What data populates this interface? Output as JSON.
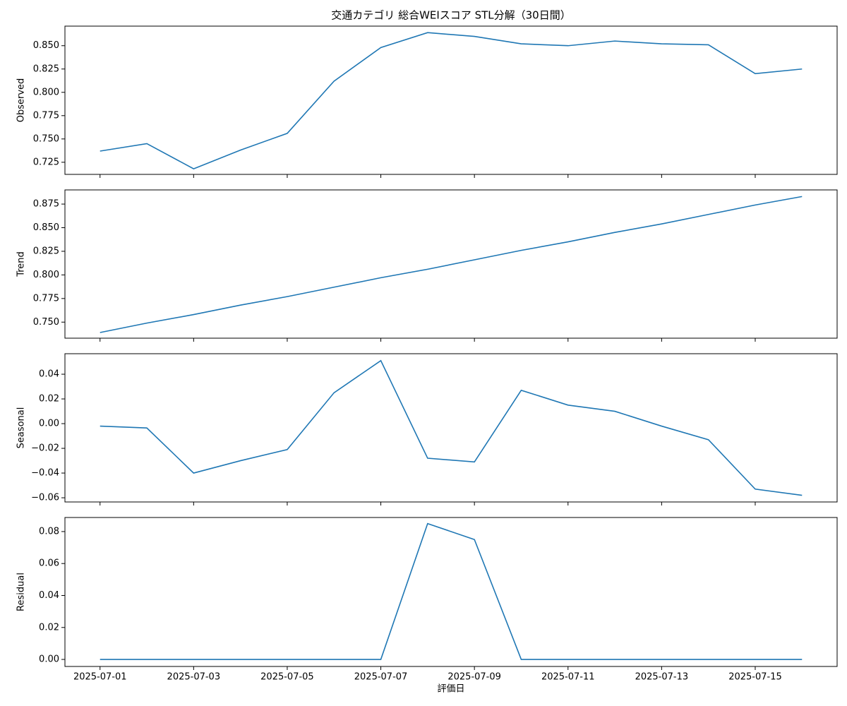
{
  "chart_data": [
    {
      "type": "line",
      "title": "交通カテゴリ 総合WEIスコア STL分解（30日間）",
      "ylabel": "Observed",
      "x": [
        "2025-07-01",
        "2025-07-02",
        "2025-07-03",
        "2025-07-04",
        "2025-07-05",
        "2025-07-06",
        "2025-07-07",
        "2025-07-08",
        "2025-07-09",
        "2025-07-10",
        "2025-07-11",
        "2025-07-12",
        "2025-07-13",
        "2025-07-14",
        "2025-07-15",
        "2025-07-16"
      ],
      "series": [
        {
          "color": "#1f77b4",
          "values": [
            0.737,
            0.745,
            0.718,
            0.738,
            0.756,
            0.812,
            0.848,
            0.864,
            0.86,
            0.852,
            0.85,
            0.855,
            0.852,
            0.851,
            0.82,
            0.825
          ]
        }
      ],
      "ylim": [
        0.712,
        0.871
      ],
      "yticks": [
        0.725,
        {
          "value": 0.75,
          "label": "0.750"
        },
        0.775,
        {
          "value": 0.8,
          "label": "0.800"
        },
        0.825,
        {
          "value": 0.85,
          "label": "0.850"
        }
      ]
    },
    {
      "type": "line",
      "ylabel": "Trend",
      "x": [
        "2025-07-01",
        "2025-07-02",
        "2025-07-03",
        "2025-07-04",
        "2025-07-05",
        "2025-07-06",
        "2025-07-07",
        "2025-07-08",
        "2025-07-09",
        "2025-07-10",
        "2025-07-11",
        "2025-07-12",
        "2025-07-13",
        "2025-07-14",
        "2025-07-15",
        "2025-07-16"
      ],
      "series": [
        {
          "color": "#1f77b4",
          "values": [
            0.739,
            0.749,
            0.758,
            0.768,
            0.777,
            0.787,
            0.797,
            0.806,
            0.816,
            0.826,
            0.835,
            0.845,
            0.854,
            0.864,
            0.874,
            0.883
          ]
        }
      ],
      "ylim": [
        0.733,
        0.89
      ],
      "yticks": [
        {
          "value": 0.75,
          "label": "0.750"
        },
        0.775,
        {
          "value": 0.8,
          "label": "0.800"
        },
        0.825,
        {
          "value": 0.85,
          "label": "0.850"
        },
        0.875
      ]
    },
    {
      "type": "line",
      "ylabel": "Seasonal",
      "x": [
        "2025-07-01",
        "2025-07-02",
        "2025-07-03",
        "2025-07-04",
        "2025-07-05",
        "2025-07-06",
        "2025-07-07",
        "2025-07-08",
        "2025-07-09",
        "2025-07-10",
        "2025-07-11",
        "2025-07-12",
        "2025-07-13",
        "2025-07-14",
        "2025-07-15",
        "2025-07-16"
      ],
      "series": [
        {
          "color": "#1f77b4",
          "values": [
            -0.002,
            -0.0035,
            -0.04,
            -0.03,
            -0.021,
            0.025,
            0.051,
            -0.028,
            -0.031,
            0.027,
            0.015,
            0.01,
            -0.002,
            -0.013,
            -0.053,
            -0.058
          ]
        }
      ],
      "ylim": [
        -0.0634,
        0.0566
      ],
      "yticks": [
        {
          "value": -0.06,
          "label": "−0.06"
        },
        {
          "value": -0.04,
          "label": "−0.04"
        },
        {
          "value": -0.02,
          "label": "−0.02"
        },
        {
          "value": 0,
          "label": "0.00"
        },
        0.02,
        0.04
      ]
    },
    {
      "type": "line",
      "ylabel": "Residual",
      "xlabel": "評価日",
      "x": [
        "2025-07-01",
        "2025-07-02",
        "2025-07-03",
        "2025-07-04",
        "2025-07-05",
        "2025-07-06",
        "2025-07-07",
        "2025-07-08",
        "2025-07-09",
        "2025-07-10",
        "2025-07-11",
        "2025-07-12",
        "2025-07-13",
        "2025-07-14",
        "2025-07-15",
        "2025-07-16"
      ],
      "series": [
        {
          "color": "#1f77b4",
          "values": [
            0,
            0,
            0,
            0,
            0,
            0,
            0,
            0.085,
            0.075,
            0,
            0,
            0,
            0,
            0,
            0,
            0
          ]
        }
      ],
      "ylim": [
        -0.0044,
        0.0888
      ],
      "yticks": [
        {
          "value": 0,
          "label": "0.00"
        },
        0.02,
        0.04,
        0.06,
        0.08
      ],
      "xticks": [
        "2025-07-01",
        "2025-07-03",
        "2025-07-05",
        "2025-07-07",
        "2025-07-09",
        "2025-07-11",
        "2025-07-13",
        "2025-07-15"
      ]
    }
  ]
}
